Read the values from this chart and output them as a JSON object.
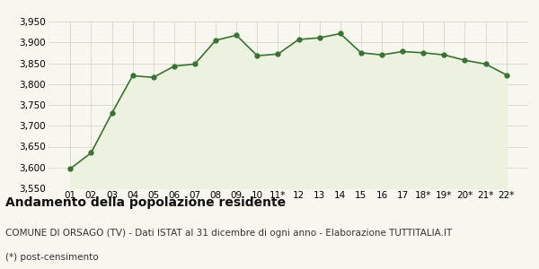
{
  "x_labels": [
    "01",
    "02",
    "03",
    "04",
    "05",
    "06",
    "07",
    "08",
    "09",
    "10",
    "11*",
    "12",
    "13",
    "14",
    "15",
    "16",
    "17",
    "18*",
    "19*",
    "20*",
    "21*",
    "22*"
  ],
  "data": [
    3597,
    3635,
    3730,
    3820,
    3816,
    3843,
    3848,
    3905,
    3917,
    3868,
    3872,
    3907,
    3911,
    3921,
    3875,
    3870,
    3878,
    3875,
    3870,
    3857,
    3848,
    3822
  ],
  "ylim": [
    3550,
    3950
  ],
  "yticks": [
    3550,
    3600,
    3650,
    3700,
    3750,
    3800,
    3850,
    3900,
    3950
  ],
  "line_color": "#3a7233",
  "fill_color": "#edf2e0",
  "marker_color": "#3a7233",
  "grid_color": "#d0d0c0",
  "bg_color": "#f7f7f0",
  "plot_bg_color": "#f7f7f0",
  "title": "Andamento della popolazione residente",
  "subtitle": "COMUNE DI ORSAGO (TV) - Dati ISTAT al 31 dicembre di ogni anno - Elaborazione TUTTITALIA.IT",
  "footnote": "(*) post-censimento",
  "title_fontsize": 10,
  "subtitle_fontsize": 7.5,
  "footnote_fontsize": 7.5,
  "tick_fontsize": 7.5
}
